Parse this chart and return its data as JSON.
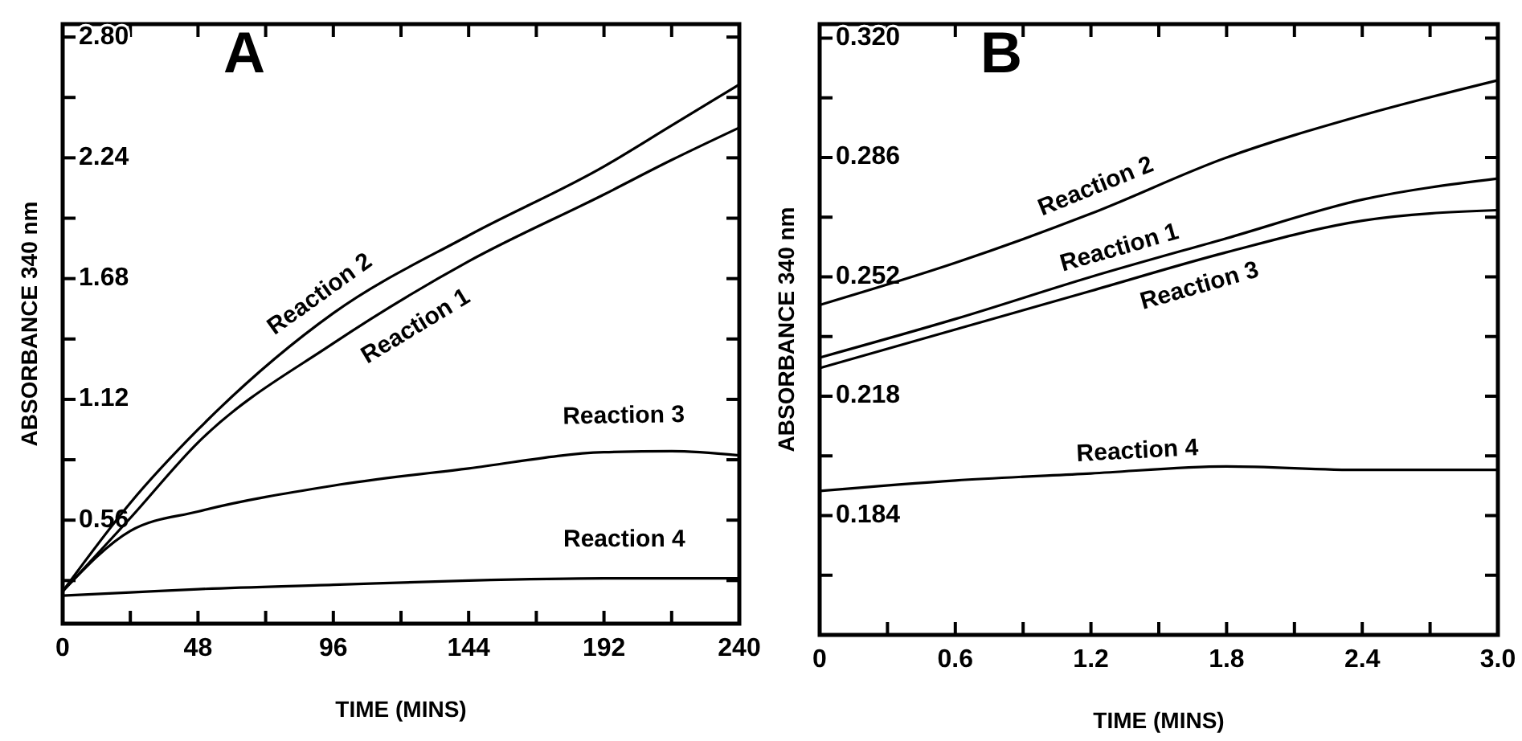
{
  "chart_data": [
    {
      "type": "line",
      "title": "A",
      "xlabel": "TIME (MINS)",
      "ylabel": "ABSORBANCE 340 nm",
      "x": [
        0,
        24,
        48,
        96,
        144,
        192,
        216,
        240
      ],
      "xlim": [
        0,
        240
      ],
      "xticks": [
        0,
        {
          "value": 24,
          "label": null
        },
        48,
        {
          "value": 72,
          "label": null
        },
        96,
        {
          "value": 120,
          "label": null
        },
        144,
        {
          "value": 168,
          "label": null
        },
        192,
        {
          "value": 216,
          "label": null
        },
        240
      ],
      "ylim": [
        0.08,
        2.86
      ],
      "yticks": [
        {
          "value": 0.28,
          "label": null
        },
        0.56,
        {
          "value": 0.84,
          "label": null
        },
        1.12,
        {
          "value": 1.4,
          "label": null
        },
        1.68,
        {
          "value": 1.96,
          "label": null
        },
        2.24,
        {
          "value": 2.52,
          "label": null
        },
        {
          "value": 2.8,
          "label": "2.80"
        }
      ],
      "grid": false,
      "series": [
        {
          "name": "Reaction 1",
          "color": "#000000",
          "values": [
            0.23,
            0.57,
            0.92,
            1.38,
            1.76,
            2.07,
            2.23,
            2.38
          ]
        },
        {
          "name": "Reaction 2",
          "color": "#000000",
          "values": [
            0.23,
            0.64,
            0.98,
            1.52,
            1.88,
            2.2,
            2.39,
            2.58
          ]
        },
        {
          "name": "Reaction 3",
          "color": "#000000",
          "values": [
            0.23,
            0.51,
            0.6,
            0.72,
            0.8,
            0.875,
            0.88,
            0.86
          ]
        },
        {
          "name": "Reaction 4",
          "color": "#000000",
          "values": [
            0.21,
            0.225,
            0.24,
            0.26,
            0.28,
            0.29,
            0.29,
            0.29
          ]
        }
      ]
    },
    {
      "type": "line",
      "title": "B",
      "xlabel": "TIME (MINS)",
      "ylabel": "ABSORBANCE 340 nm",
      "x": [
        0,
        0.6,
        1.2,
        1.8,
        2.4,
        3.0
      ],
      "xlim": [
        0,
        3.0
      ],
      "xticks": [
        {
          "value": 0,
          "label": "0"
        },
        {
          "value": 0.3,
          "label": null
        },
        0.6,
        {
          "value": 0.9,
          "label": null
        },
        1.2,
        {
          "value": 1.5,
          "label": null
        },
        1.8,
        {
          "value": 2.1,
          "label": null
        },
        2.4,
        {
          "value": 2.7,
          "label": null
        },
        {
          "value": 3.0,
          "label": "3.0"
        }
      ],
      "ylim": [
        0.15,
        0.324
      ],
      "yticks": [
        {
          "value": 0.167,
          "label": null
        },
        0.184,
        {
          "value": 0.201,
          "label": null
        },
        0.218,
        {
          "value": 0.235,
          "label": null
        },
        0.252,
        {
          "value": 0.269,
          "label": null
        },
        0.286,
        {
          "value": 0.303,
          "label": null
        },
        {
          "value": 0.32,
          "label": "0.320"
        }
      ],
      "grid": false,
      "series": [
        {
          "name": "Reaction 1",
          "color": "#000000",
          "values": [
            0.229,
            0.24,
            0.252,
            0.263,
            0.274,
            0.28
          ]
        },
        {
          "name": "Reaction 2",
          "color": "#000000",
          "values": [
            0.244,
            0.256,
            0.27,
            0.286,
            0.298,
            0.308
          ]
        },
        {
          "name": "Reaction 3",
          "color": "#000000",
          "values": [
            0.226,
            0.237,
            0.248,
            0.259,
            0.268,
            0.271
          ]
        },
        {
          "name": "Reaction 4",
          "color": "#000000",
          "values": [
            0.191,
            0.194,
            0.196,
            0.198,
            0.197,
            0.197
          ]
        }
      ]
    }
  ]
}
